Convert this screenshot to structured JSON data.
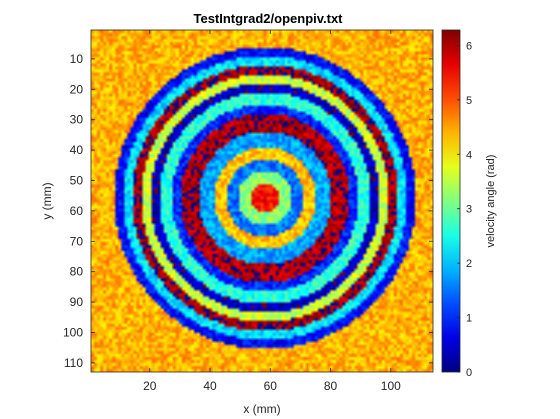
{
  "chart_data": {
    "type": "heatmap",
    "title": "TestIntgrad2/openpiv.txt",
    "xlabel": "x (mm)",
    "ylabel": "y (mm)",
    "xlim": [
      0.5,
      114
    ],
    "ylim": [
      0.5,
      113
    ],
    "y_reversed": true,
    "xticks": [
      20,
      40,
      60,
      80,
      100
    ],
    "yticks": [
      10,
      20,
      30,
      40,
      50,
      60,
      70,
      80,
      90,
      100,
      110
    ],
    "colorbar": {
      "label": "velocity angle (rad)",
      "range": [
        0,
        6.2832
      ],
      "ticks": [
        0,
        1,
        2,
        3,
        4,
        5,
        6
      ],
      "colormap": "jet"
    },
    "field": {
      "description_of_pattern": "concentric rings of velocity angle around a center",
      "center_x": 58,
      "center_y": 56,
      "rings": [
        {
          "r_inner": 0,
          "r_outer": 5,
          "angle": 5.4
        },
        {
          "r_inner": 5,
          "r_outer": 9,
          "angle": 3.2
        },
        {
          "r_inner": 9,
          "r_outer": 13,
          "angle": 1.5
        },
        {
          "r_inner": 13,
          "r_outer": 17,
          "angle": 4.3
        },
        {
          "r_inner": 17,
          "r_outer": 22,
          "angle": 1.8
        },
        {
          "r_inner": 22,
          "r_outer": 28,
          "angle": 6.0
        },
        {
          "r_inner": 28,
          "r_outer": 31,
          "angle": 1.0
        },
        {
          "r_inner": 31,
          "r_outer": 35,
          "angle": 2.6
        },
        {
          "r_inner": 35,
          "r_outer": 38,
          "angle": 0.4
        },
        {
          "r_inner": 38,
          "r_outer": 41,
          "angle": 3.6
        },
        {
          "r_inner": 41,
          "r_outer": 44,
          "angle": 6.1
        },
        {
          "r_inner": 44,
          "r_outer": 47,
          "angle": 2.2
        },
        {
          "r_inner": 47,
          "r_outer": 50,
          "angle": 0.8
        },
        {
          "r_inner": 50,
          "r_outer": 200,
          "angle": 4.4
        }
      ]
    }
  }
}
